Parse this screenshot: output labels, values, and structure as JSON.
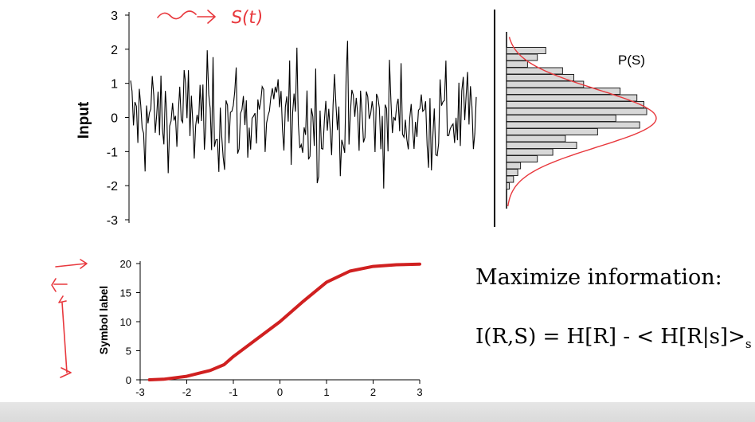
{
  "chart_data": [
    {
      "type": "line",
      "ylabel": "Input",
      "yticks": [
        "3",
        "2",
        "1",
        "0",
        "-1",
        "-2",
        "-3"
      ],
      "ylim": [
        -3,
        3
      ]
    },
    {
      "type": "bar",
      "title": "P(S)",
      "orientation": "horizontal",
      "bins": [
        2.0,
        1.8,
        1.6,
        1.4,
        1.2,
        1.0,
        0.8,
        0.6,
        0.4,
        0.2,
        0.0,
        -0.2,
        -0.4,
        -0.6,
        -0.8,
        -1.0,
        -1.2,
        -1.4,
        -1.6,
        -1.8,
        -2.0
      ],
      "values": [
        0.28,
        0.22,
        0.15,
        0.4,
        0.48,
        0.55,
        0.81,
        0.93,
        0.98,
        1.0,
        0.78,
        0.95,
        0.65,
        0.42,
        0.5,
        0.33,
        0.22,
        0.1,
        0.08,
        0.05,
        0.02
      ],
      "fit_curve": "gaussian",
      "fit_color": "#e8383d"
    },
    {
      "type": "line",
      "ylabel": "Symbol label",
      "xticks": [
        "-3",
        "-2",
        "-1",
        "0",
        "1",
        "2",
        "3"
      ],
      "yticks": [
        "20",
        "15",
        "10",
        "5",
        "0"
      ],
      "xlim": [
        -3,
        3
      ],
      "ylim": [
        0,
        20
      ],
      "series": [
        {
          "color": "#d02020",
          "x": [
            -2.8,
            -2.5,
            -2.0,
            -1.5,
            -1.2,
            -1.0,
            -0.5,
            0.0,
            0.5,
            1.0,
            1.5,
            2.0,
            2.5,
            3.0
          ],
          "y": [
            0.0,
            0.1,
            0.6,
            1.6,
            2.6,
            4.0,
            7.0,
            10.0,
            13.5,
            16.8,
            18.7,
            19.5,
            19.8,
            19.9
          ]
        }
      ]
    }
  ],
  "annotations": {
    "signal_label": "S(t)",
    "heading": "Maximize information:",
    "formula": {
      "main": "I(R,S) = H[R] - < H[R|s]>",
      "sub": "s"
    }
  },
  "colors": {
    "signal": "#000000",
    "bar_fill": "#d8d8d8",
    "curve": "#d02020",
    "ink": "#e8383d"
  }
}
